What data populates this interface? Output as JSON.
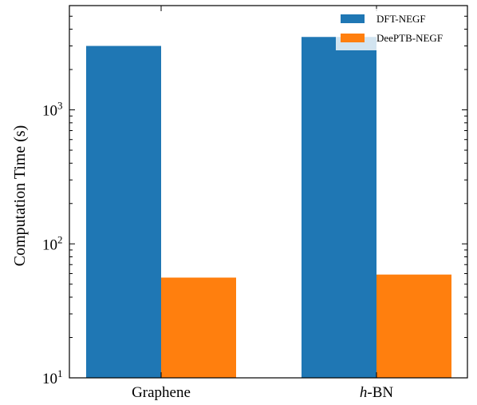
{
  "chart_data": {
    "type": "bar",
    "categories": [
      "Graphene",
      "h-BN"
    ],
    "series": [
      {
        "name": "DFT-NEGF",
        "color": "#1f77b4",
        "values": [
          3000,
          3500
        ]
      },
      {
        "name": "DeePTB-NEGF",
        "color": "#ff7f0e",
        "values": [
          56,
          59
        ]
      }
    ],
    "title": "",
    "xlabel": "",
    "ylabel": "Computation Time (s)",
    "yscale": "log",
    "ylim": [
      10,
      6000
    ],
    "ytick_labels": [
      {
        "base": "10",
        "exp": "1",
        "value": 10
      },
      {
        "base": "10",
        "exp": "2",
        "value": 100
      },
      {
        "base": "10",
        "exp": "3",
        "value": 1000
      }
    ],
    "legend_position": "top-right",
    "grid": false
  }
}
